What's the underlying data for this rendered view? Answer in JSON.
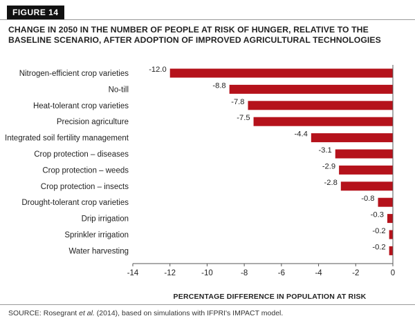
{
  "figure_label": "FIGURE 14",
  "source": {
    "prefix": "SOURCE: Rosegrant ",
    "italic": "et al.",
    "suffix": " (2014), based on simulations with IFPRI's IMPACT model."
  },
  "colors": {
    "bar": "#b5121b",
    "axis": "#555555"
  },
  "chart_data": {
    "type": "bar",
    "orientation": "horizontal",
    "title": "CHANGE IN 2050 IN THE NUMBER OF PEOPLE AT RISK OF HUNGER, RELATIVE TO THE BASELINE SCENARIO, AFTER ADOPTION OF IMPROVED AGRICULTURAL TECHNOLOGIES",
    "xlabel": "PERCENTAGE DIFFERENCE IN POPULATION AT RISK",
    "ylabel": "",
    "xlim": [
      -14,
      0
    ],
    "xticks": [
      -14,
      -12,
      -10,
      -8,
      -6,
      -4,
      -2,
      0
    ],
    "grid": false,
    "categories": [
      "Nitrogen-efficient crop varieties",
      "No-till",
      "Heat-tolerant crop varieties",
      "Precision agriculture",
      "Integrated soil fertility management",
      "Crop protection – diseases",
      "Crop protection – weeds",
      "Crop protection – insects",
      "Drought-tolerant crop varieties",
      "Drip irrigation",
      "Sprinkler irrigation",
      "Water harvesting"
    ],
    "values": [
      -12.0,
      -8.8,
      -7.8,
      -7.5,
      -4.4,
      -3.1,
      -2.9,
      -2.8,
      -0.8,
      -0.3,
      -0.2,
      -0.2
    ],
    "value_labels": [
      "-12.0",
      "-8.8",
      "-7.8",
      "-7.5",
      "-4.4",
      "-3.1",
      "-2.9",
      "-2.8",
      "-0.8",
      "-0.3",
      "-0.2",
      "-0.2"
    ]
  }
}
